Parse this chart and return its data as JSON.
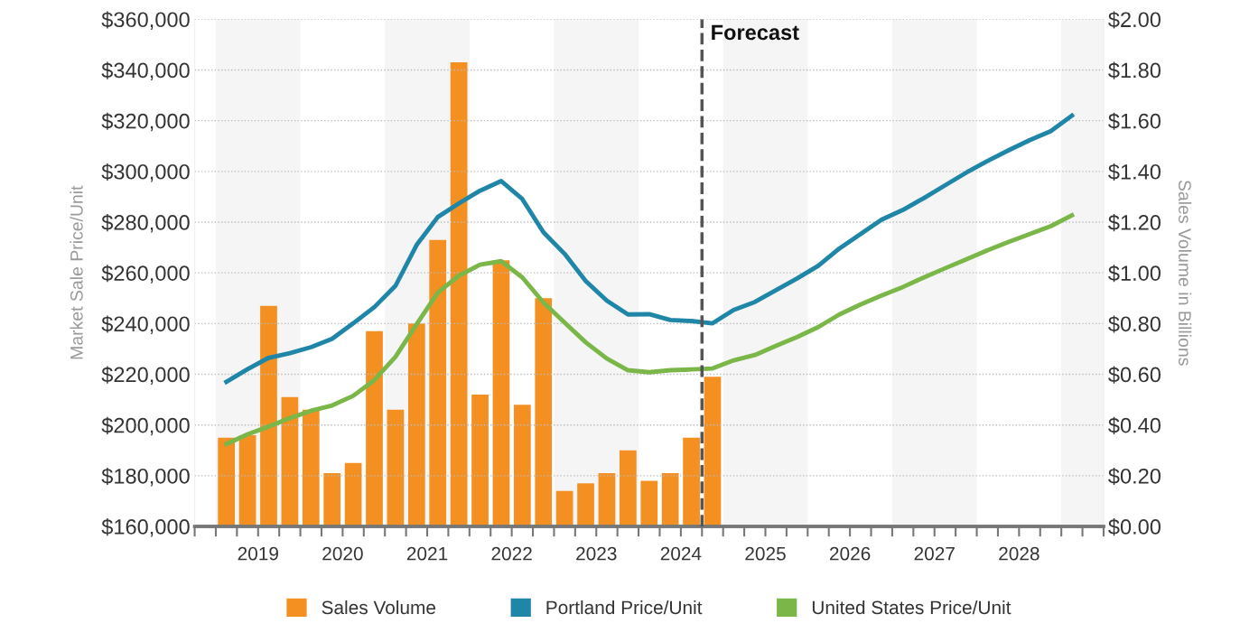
{
  "chart_data": {
    "type": "line",
    "ylabel": "Market Sale Price/Unit",
    "y2label": "Sales Volume in Billions",
    "xlim": [
      2018.75,
      2029.5
    ],
    "xticks": [
      {
        "value": 2018.75,
        "label": null
      },
      {
        "value": 2019,
        "label": null
      },
      {
        "value": 2019.25,
        "label": null
      },
      {
        "value": 2019.5,
        "label": "2019"
      },
      {
        "value": 2019.75,
        "label": null
      },
      {
        "value": 2020,
        "label": null
      },
      {
        "value": 2020.25,
        "label": null
      },
      {
        "value": 2020.5,
        "label": "2020"
      },
      {
        "value": 2020.75,
        "label": null
      },
      {
        "value": 2021,
        "label": null
      },
      {
        "value": 2021.25,
        "label": null
      },
      {
        "value": 2021.5,
        "label": "2021"
      },
      {
        "value": 2021.75,
        "label": null
      },
      {
        "value": 2022,
        "label": null
      },
      {
        "value": 2022.25,
        "label": null
      },
      {
        "value": 2022.5,
        "label": "2022"
      },
      {
        "value": 2022.75,
        "label": null
      },
      {
        "value": 2023,
        "label": null
      },
      {
        "value": 2023.25,
        "label": null
      },
      {
        "value": 2023.5,
        "label": "2023"
      },
      {
        "value": 2023.75,
        "label": null
      },
      {
        "value": 2024,
        "label": null
      },
      {
        "value": 2024.25,
        "label": null
      },
      {
        "value": 2024.5,
        "label": "2024"
      },
      {
        "value": 2024.75,
        "label": null
      },
      {
        "value": 2025,
        "label": null
      },
      {
        "value": 2025.25,
        "label": null
      },
      {
        "value": 2025.5,
        "label": "2025"
      },
      {
        "value": 2025.75,
        "label": null
      },
      {
        "value": 2026,
        "label": null
      },
      {
        "value": 2026.25,
        "label": null
      },
      {
        "value": 2026.5,
        "label": "2026"
      },
      {
        "value": 2026.75,
        "label": null
      },
      {
        "value": 2027,
        "label": null
      },
      {
        "value": 2027.25,
        "label": null
      },
      {
        "value": 2027.5,
        "label": "2027"
      },
      {
        "value": 2027.75,
        "label": null
      },
      {
        "value": 2028,
        "label": null
      },
      {
        "value": 2028.25,
        "label": null
      },
      {
        "value": 2028.5,
        "label": "2028"
      },
      {
        "value": 2028.75,
        "label": null
      },
      {
        "value": 2029,
        "label": null
      },
      {
        "value": 2029.25,
        "label": null
      },
      {
        "value": 2029.5,
        "label": null
      }
    ],
    "ylim": [
      160000,
      360000
    ],
    "yticks": [
      {
        "value": 160000,
        "label": "$160,000"
      },
      {
        "value": 180000,
        "label": "$180,000"
      },
      {
        "value": 200000,
        "label": "$200,000"
      },
      {
        "value": 220000,
        "label": "$220,000"
      },
      {
        "value": 240000,
        "label": "$240,000"
      },
      {
        "value": 260000,
        "label": "$260,000"
      },
      {
        "value": 280000,
        "label": "$280,000"
      },
      {
        "value": 300000,
        "label": "$300,000"
      },
      {
        "value": 320000,
        "label": "$320,000"
      },
      {
        "value": 340000,
        "label": "$340,000"
      },
      {
        "value": 360000,
        "label": "$360,000"
      }
    ],
    "y2lim": [
      0,
      2
    ],
    "y2ticks": [
      {
        "value": 0,
        "label": "$0.00"
      },
      {
        "value": 0.2,
        "label": "$0.20"
      },
      {
        "value": 0.4,
        "label": "$0.40"
      },
      {
        "value": 0.6,
        "label": "$0.60"
      },
      {
        "value": 0.8,
        "label": "$0.80"
      },
      {
        "value": 1.0,
        "label": "$1.00"
      },
      {
        "value": 1.2,
        "label": "$1.20"
      },
      {
        "value": 1.4,
        "label": "$1.40"
      },
      {
        "value": 1.6,
        "label": "$1.60"
      },
      {
        "value": 1.8,
        "label": "$1.80"
      },
      {
        "value": 2.0,
        "label": "$2.00"
      }
    ],
    "grid": "y",
    "legend": "bottom",
    "marker": "none",
    "line_style": "solid",
    "bands": [
      {
        "axis": "x",
        "from": 2019,
        "to": 2020,
        "color": "#f5f5f5"
      },
      {
        "axis": "x",
        "from": 2021,
        "to": 2022,
        "color": "#f5f5f5"
      },
      {
        "axis": "x",
        "from": 2023,
        "to": 2024,
        "color": "#f5f5f5"
      },
      {
        "axis": "x",
        "from": 2025,
        "to": 2026,
        "color": "#f5f5f5"
      },
      {
        "axis": "x",
        "from": 2027,
        "to": 2028,
        "color": "#f5f5f5"
      },
      {
        "axis": "x",
        "from": 2029,
        "to": 2029.5,
        "color": "#f5f5f5"
      }
    ],
    "ref_lines": [
      {
        "axis": "x",
        "value": 2024.75,
        "label": "Forecast",
        "color": "#555555",
        "line_style": "dashed"
      }
    ],
    "series": [
      {
        "name": "Sales Volume",
        "type": "bar",
        "axis": "y2",
        "color": "#f39021",
        "x": [
          2019.125,
          2019.375,
          2019.625,
          2019.875,
          2020.125,
          2020.375,
          2020.625,
          2020.875,
          2021.125,
          2021.375,
          2021.625,
          2021.875,
          2022.125,
          2022.375,
          2022.625,
          2022.875,
          2023.125,
          2023.375,
          2023.625,
          2023.875,
          2024.125,
          2024.375,
          2024.625,
          2024.875
        ],
        "values": [
          0.35,
          0.36,
          0.87,
          0.51,
          0.46,
          0.21,
          0.25,
          0.77,
          0.46,
          0.8,
          1.13,
          1.83,
          0.52,
          1.05,
          0.48,
          0.9,
          0.14,
          0.17,
          0.21,
          0.3,
          0.18,
          0.21,
          0.35,
          0.59
        ]
      },
      {
        "name": "Portland Price/Unit",
        "color": "#1f86a8",
        "x": [
          2019.125,
          2019.375,
          2019.625,
          2019.875,
          2020.125,
          2020.375,
          2020.625,
          2020.875,
          2021.125,
          2021.375,
          2021.625,
          2021.875,
          2022.125,
          2022.375,
          2022.625,
          2022.875,
          2023.125,
          2023.375,
          2023.625,
          2023.875,
          2024.125,
          2024.375,
          2024.625,
          2024.875,
          2025.125,
          2025.375,
          2025.625,
          2025.875,
          2026.125,
          2026.375,
          2026.625,
          2026.875,
          2027.125,
          2027.375,
          2027.625,
          2027.875,
          2028.125,
          2028.375,
          2028.625,
          2028.875,
          2029.125
        ],
        "values": [
          217000,
          222000,
          226500,
          228300,
          230700,
          234000,
          240100,
          246500,
          254900,
          271000,
          282000,
          287400,
          292400,
          296200,
          289100,
          276000,
          267500,
          256800,
          249000,
          243600,
          243700,
          241400,
          241000,
          240100,
          245400,
          248500,
          253200,
          257800,
          262800,
          269600,
          275300,
          281000,
          284800,
          289500,
          294500,
          299500,
          304100,
          308300,
          312300,
          315900,
          322000
        ]
      },
      {
        "name": "United States Price/Unit",
        "color": "#7ab648",
        "x": [
          2019.125,
          2019.375,
          2019.625,
          2019.875,
          2020.125,
          2020.375,
          2020.625,
          2020.875,
          2021.125,
          2021.375,
          2021.625,
          2021.875,
          2022.125,
          2022.375,
          2022.625,
          2022.875,
          2023.125,
          2023.375,
          2023.625,
          2023.875,
          2024.125,
          2024.375,
          2024.625,
          2024.875,
          2025.125,
          2025.375,
          2025.625,
          2025.875,
          2026.125,
          2026.375,
          2026.625,
          2026.875,
          2027.125,
          2027.375,
          2027.625,
          2027.875,
          2028.125,
          2028.375,
          2028.625,
          2028.875,
          2029.125
        ],
        "values": [
          192500,
          196300,
          199400,
          202700,
          205600,
          207700,
          211500,
          217700,
          226900,
          239700,
          252200,
          258900,
          263200,
          264600,
          258200,
          248300,
          240400,
          232600,
          226200,
          221600,
          220800,
          221600,
          221900,
          222300,
          225500,
          227600,
          231200,
          234700,
          238600,
          243600,
          247500,
          251100,
          254400,
          258200,
          261800,
          265300,
          268900,
          272200,
          275300,
          278400,
          282700
        ]
      }
    ]
  }
}
